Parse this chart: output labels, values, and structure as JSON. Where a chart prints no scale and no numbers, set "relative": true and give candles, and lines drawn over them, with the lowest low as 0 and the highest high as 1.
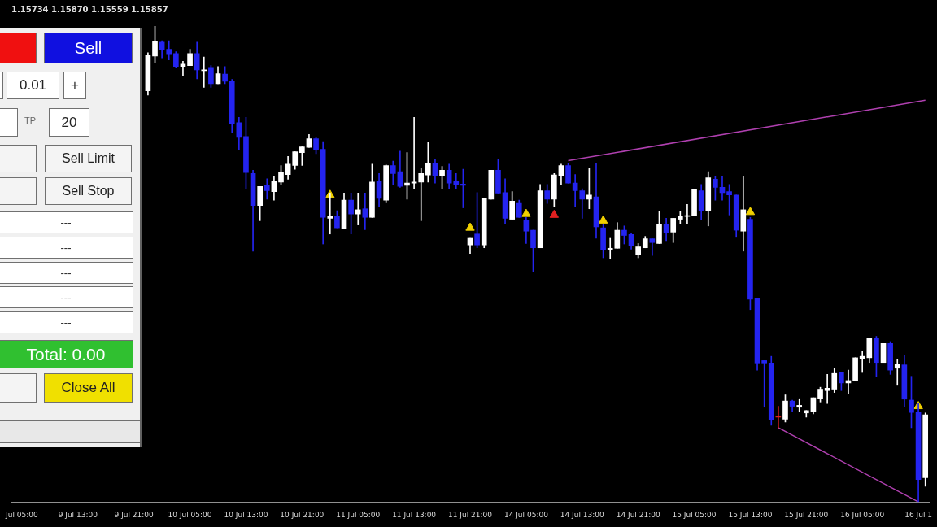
{
  "chart_data": {
    "type": "candlestick",
    "title": "1.15734 1.15870 1.15559 1.15857",
    "relative": true,
    "categories": [
      null,
      "Jul 05:00",
      null,
      null,
      null,
      null,
      null,
      null,
      null,
      "9 Jul 13:00",
      null,
      null,
      null,
      null,
      null,
      null,
      null,
      "9 Jul 21:00",
      null,
      null,
      null,
      null,
      null,
      null,
      null,
      "10 Jul 05:00",
      null,
      null,
      null,
      null,
      null,
      null,
      null,
      "10 Jul 13:00",
      null,
      null,
      null,
      null,
      null,
      null,
      null,
      "10 Jul 21:00",
      null,
      null,
      null,
      null,
      null,
      null,
      null,
      "11 Jul 05:00",
      null,
      null,
      null,
      null,
      null,
      null,
      null,
      "11 Jul 13:00",
      null,
      null,
      null,
      null,
      null,
      null,
      null,
      "11 Jul 21:00",
      null,
      null,
      null,
      null,
      null,
      null,
      null,
      "14 Jul 05:00",
      null,
      null,
      null,
      null,
      null,
      null,
      null,
      "14 Jul 13:00",
      null,
      null,
      null,
      null,
      null,
      null,
      null,
      "14 Jul 21:00",
      null,
      null,
      null,
      null,
      null,
      null,
      null,
      "15 Jul 05:00",
      null,
      null,
      null,
      null,
      null,
      null,
      null,
      "15 Jul 13:00",
      null,
      null,
      null,
      null,
      null,
      null,
      null,
      "15 Jul 21:00",
      null,
      null,
      null,
      null,
      null,
      null,
      null,
      "16 Jul 05:00",
      null,
      null,
      null,
      null,
      null,
      null,
      null,
      "16 Jul 1",
      null
    ],
    "ohlc": [
      null,
      null,
      null,
      null,
      null,
      null,
      null,
      null,
      null,
      null,
      null,
      null,
      null,
      null,
      null,
      null,
      null,
      null,
      null,
      [
        0.864,
        0.944,
        0.855,
        0.938
      ],
      [
        0.937,
        1,
        0.922,
        0.967
      ],
      [
        0.966,
        0.969,
        0.933,
        0.951
      ],
      [
        0.951,
        0.969,
        0.929,
        0.94
      ],
      [
        0.942,
        0.946,
        0.913,
        0.915
      ],
      [
        0.915,
        0.926,
        0.895,
        0.92
      ],
      [
        0.917,
        0.951,
        0.917,
        0.942
      ],
      [
        0.942,
        0.966,
        0.889,
        0.908
      ],
      [
        0.906,
        0.935,
        0.871,
        0.908
      ],
      [
        0.913,
        0.917,
        0.871,
        0.879
      ],
      [
        0.879,
        0.915,
        0.879,
        0.9
      ],
      [
        0.899,
        0.915,
        0.879,
        0.884
      ],
      [
        0.884,
        0.888,
        0.775,
        0.795
      ],
      [
        0.797,
        0.808,
        0.739,
        0.766
      ],
      [
        0.768,
        0.808,
        0.659,
        0.692
      ],
      [
        0.69,
        0.697,
        0.527,
        0.623
      ],
      [
        0.623,
        0.663,
        0.591,
        0.663
      ],
      [
        0.665,
        0.679,
        0.636,
        0.654
      ],
      [
        0.652,
        0.685,
        0.634,
        0.674
      ],
      [
        0.672,
        0.707,
        0.667,
        0.692
      ],
      [
        0.688,
        0.726,
        0.678,
        0.71
      ],
      [
        0.707,
        0.736,
        0.699,
        0.736
      ],
      [
        0.734,
        0.746,
        0.707,
        0.746
      ],
      [
        0.745,
        0.772,
        0.745,
        0.763
      ],
      [
        0.763,
        0.766,
        0.732,
        0.741
      ],
      [
        0.741,
        0.757,
        0.542,
        0.598
      ],
      [
        0.596,
        0.649,
        0.563,
        0.6
      ],
      [
        0.6,
        0.612,
        0.576,
        0.576
      ],
      [
        0.574,
        0.649,
        0.574,
        0.634
      ],
      [
        0.634,
        0.649,
        0.563,
        0.605
      ],
      [
        0.605,
        0.649,
        0.582,
        0.614
      ],
      [
        0.616,
        0.649,
        0.572,
        0.598
      ],
      [
        0.598,
        0.71,
        0.598,
        0.672
      ],
      [
        0.674,
        0.69,
        0.621,
        0.638
      ],
      [
        0.634,
        0.708,
        0.63,
        0.707
      ],
      [
        0.707,
        0.716,
        0.667,
        0.69
      ],
      [
        0.694,
        0.737,
        0.661,
        0.663
      ],
      [
        0.665,
        0.734,
        0.636,
        0.67
      ],
      [
        0.67,
        0.808,
        0.658,
        0.672
      ],
      [
        0.672,
        0.701,
        0.591,
        0.69
      ],
      [
        0.687,
        0.755,
        0.672,
        0.712
      ],
      [
        0.712,
        0.721,
        0.67,
        0.685
      ],
      [
        0.685,
        0.705,
        0.659,
        0.697
      ],
      [
        0.697,
        0.71,
        0.659,
        0.67
      ],
      [
        0.674,
        0.69,
        0.658,
        0.667
      ],
      [
        0.668,
        0.699,
        0.618,
        0.665
      ],
      [
        0.54,
        0.554,
        0.522,
        0.554
      ],
      [
        0.563,
        0.65,
        0.534,
        0.54
      ],
      [
        0.54,
        0.638,
        0.534,
        0.638
      ],
      [
        0.636,
        0.697,
        0.636,
        0.697
      ],
      [
        0.697,
        0.719,
        0.649,
        0.649
      ],
      [
        0.65,
        0.679,
        0.585,
        0.596
      ],
      [
        0.594,
        0.652,
        0.594,
        0.632
      ],
      [
        0.629,
        0.634,
        0.598,
        0.598
      ],
      [
        0.592,
        0.598,
        0.543,
        0.569
      ],
      [
        0.571,
        0.571,
        0.484,
        0.534
      ],
      [
        0.534,
        0.667,
        0.534,
        0.654
      ],
      [
        0.654,
        0.667,
        0.627,
        0.636
      ],
      [
        0.636,
        0.69,
        0.621,
        0.687
      ],
      [
        0.685,
        0.71,
        0.667,
        0.707
      ],
      [
        0.707,
        0.712,
        0.67,
        0.67
      ],
      [
        0.67,
        0.688,
        0.621,
        0.654
      ],
      [
        0.654,
        0.658,
        0.596,
        0.636
      ],
      [
        0.636,
        0.701,
        0.616,
        0.645
      ],
      [
        0.641,
        0.712,
        0.554,
        0.578
      ],
      [
        0.576,
        0.583,
        0.513,
        0.529
      ],
      [
        0.529,
        0.554,
        0.511,
        0.533
      ],
      [
        0.533,
        0.587,
        0.533,
        0.571
      ],
      [
        0.571,
        0.58,
        0.542,
        0.56
      ],
      [
        0.562,
        0.565,
        0.531,
        0.538
      ],
      [
        0.52,
        0.543,
        0.513,
        0.536
      ],
      [
        0.534,
        0.558,
        0.534,
        0.553
      ],
      [
        0.553,
        0.553,
        0.518,
        0.545
      ],
      [
        0.543,
        0.611,
        0.543,
        0.583
      ],
      [
        0.583,
        0.596,
        0.549,
        0.565
      ],
      [
        0.567,
        0.596,
        0.545,
        0.596
      ],
      [
        0.594,
        0.611,
        0.585,
        0.601
      ],
      [
        0.6,
        0.625,
        0.585,
        0.601
      ],
      [
        0.601,
        0.656,
        0.601,
        0.656
      ],
      [
        0.654,
        0.667,
        0.594,
        0.612
      ],
      [
        0.612,
        0.694,
        0.58,
        0.681
      ],
      [
        0.678,
        0.685,
        0.634,
        0.661
      ],
      [
        0.661,
        0.685,
        0.634,
        0.65
      ],
      [
        0.652,
        0.667,
        0.603,
        0.645
      ],
      [
        0.645,
        0.645,
        0.556,
        0.571
      ],
      [
        0.569,
        0.685,
        0.527,
        0.614
      ],
      [
        0.594,
        0.598,
        0.404,
        0.426
      ],
      [
        0.428,
        0.428,
        0.277,
        0.292
      ],
      [
        0.297,
        0.297,
        0.199,
        0.292
      ],
      [
        0.292,
        0.306,
        0.161,
        0.172
      ],
      [
        0.178,
        0.201,
        0.156,
        0.178
      ],
      [
        0.174,
        0.225,
        0.168,
        0.212
      ],
      [
        0.212,
        0.214,
        0.19,
        0.201
      ],
      [
        0.199,
        0.217,
        0.19,
        0.203
      ],
      [
        0.187,
        0.192,
        0.178,
        0.192
      ],
      [
        0.19,
        0.219,
        0.185,
        0.219
      ],
      [
        0.217,
        0.241,
        0.21,
        0.237
      ],
      [
        0.234,
        0.268,
        0.207,
        0.239
      ],
      [
        0.237,
        0.281,
        0.23,
        0.27
      ],
      [
        0.272,
        0.272,
        0.234,
        0.25
      ],
      [
        0.25,
        0.277,
        0.228,
        0.255
      ],
      [
        0.255,
        0.303,
        0.255,
        0.303
      ],
      [
        0.301,
        0.317,
        0.272,
        0.306
      ],
      [
        0.303,
        0.344,
        0.293,
        0.344
      ],
      [
        0.344,
        0.348,
        0.263,
        0.293
      ],
      [
        0.293,
        0.333,
        0.293,
        0.333
      ],
      [
        0.333,
        0.337,
        0.268,
        0.277
      ],
      [
        0.281,
        0.299,
        0.245,
        0.29
      ],
      [
        0.288,
        0.308,
        0.201,
        0.216
      ],
      [
        0.214,
        0.264,
        0.156,
        0.188
      ],
      [
        0.188,
        0.208,
        0,
        0.047
      ],
      [
        0.051,
        0.187,
        0.033,
        0.183
      ]
    ],
    "colors": [
      null,
      null,
      null,
      null,
      null,
      null,
      null,
      null,
      null,
      null,
      null,
      null,
      null,
      null,
      null,
      null,
      null,
      null,
      null,
      "#ffffff",
      "#ffffff",
      "#2424f0",
      "#2424f0",
      "#2424f0",
      "#ffffff",
      "#ffffff",
      "#2424f0",
      "#ffffff",
      "#2424f0",
      "#ffffff",
      "#2424f0",
      "#2424f0",
      "#2424f0",
      "#2424f0",
      "#2424f0",
      "#ffffff",
      "#2424f0",
      "#ffffff",
      "#ffffff",
      "#ffffff",
      "#ffffff",
      "#ffffff",
      "#ffffff",
      "#2424f0",
      "#2424f0",
      "#ffffff",
      "#2424f0",
      "#ffffff",
      "#2424f0",
      "#ffffff",
      "#2424f0",
      "#ffffff",
      "#2424f0",
      "#ffffff",
      "#2424f0",
      "#2424f0",
      "#ffffff",
      "#ffffff",
      "#ffffff",
      "#ffffff",
      "#2424f0",
      "#ffffff",
      "#2424f0",
      "#2424f0",
      "#2424f0",
      "#ffffff",
      "#2424f0",
      "#ffffff",
      "#ffffff",
      "#2424f0",
      "#2424f0",
      "#ffffff",
      "#2424f0",
      "#2424f0",
      "#2424f0",
      "#ffffff",
      "#2424f0",
      "#ffffff",
      "#ffffff",
      "#2424f0",
      "#2424f0",
      "#2424f0",
      "#ffffff",
      "#2424f0",
      "#2424f0",
      "#ffffff",
      "#ffffff",
      "#2424f0",
      "#2424f0",
      "#ffffff",
      "#ffffff",
      "#2424f0",
      "#ffffff",
      "#2424f0",
      "#ffffff",
      "#ffffff",
      "#ffffff",
      "#ffffff",
      "#2424f0",
      "#ffffff",
      "#2424f0",
      "#2424f0",
      "#2424f0",
      "#2424f0",
      "#ffffff",
      "#2424f0",
      "#2424f0",
      "#2424f0",
      "#2424f0",
      "#e02020",
      "#ffffff",
      "#2424f0",
      "#ffffff",
      "#ffffff",
      "#ffffff",
      "#ffffff",
      "#ffffff",
      "#ffffff",
      "#2424f0",
      "#ffffff",
      "#ffffff",
      "#ffffff",
      "#ffffff",
      "#2424f0",
      "#ffffff",
      "#2424f0",
      "#ffffff",
      "#2424f0",
      "#2424f0",
      "#2424f0",
      "#ffffff"
    ],
    "series": [
      {
        "type": "line",
        "color": "#b040b0",
        "line_style": "solid",
        "marker": "none",
        "values": [
          null,
          null,
          null,
          null,
          null,
          null,
          null,
          null,
          null,
          null,
          null,
          null,
          null,
          null,
          null,
          null,
          null,
          null,
          null,
          null,
          null,
          null,
          null,
          null,
          null,
          null,
          null,
          null,
          null,
          null,
          null,
          null,
          null,
          null,
          null,
          null,
          null,
          null,
          null,
          null,
          null,
          null,
          null,
          null,
          null,
          null,
          null,
          null,
          null,
          null,
          null,
          null,
          null,
          null,
          null,
          null,
          null,
          null,
          null,
          null,
          null,
          null,
          null,
          null,
          null,
          null,
          null,
          null,
          null,
          null,
          null,
          null,
          null,
          null,
          null,
          null,
          null,
          null,
          null,
          0.717,
          null,
          null,
          null,
          null,
          null,
          null,
          null,
          null,
          null,
          null,
          null,
          null,
          null,
          null,
          null,
          null,
          null,
          null,
          null,
          null,
          null,
          null,
          null,
          null,
          null,
          null,
          null,
          null,
          null,
          null,
          null,
          null,
          null,
          null,
          null,
          null,
          null,
          null,
          null,
          null,
          null,
          null,
          null,
          null,
          null,
          null,
          null,
          null,
          null,
          null,
          0.844
        ]
      },
      {
        "type": "line",
        "color": "#b040b0",
        "line_style": "solid",
        "marker": "none",
        "values": [
          null,
          null,
          null,
          null,
          null,
          null,
          null,
          null,
          null,
          null,
          null,
          null,
          null,
          null,
          null,
          null,
          null,
          null,
          null,
          null,
          null,
          null,
          null,
          null,
          null,
          null,
          null,
          null,
          null,
          null,
          null,
          null,
          null,
          null,
          null,
          null,
          null,
          null,
          null,
          null,
          null,
          null,
          null,
          null,
          null,
          null,
          null,
          null,
          null,
          null,
          null,
          null,
          null,
          null,
          null,
          null,
          null,
          null,
          null,
          null,
          null,
          null,
          null,
          null,
          null,
          null,
          null,
          null,
          null,
          null,
          null,
          null,
          null,
          null,
          null,
          null,
          null,
          null,
          null,
          null,
          null,
          null,
          null,
          null,
          null,
          null,
          null,
          null,
          null,
          null,
          null,
          null,
          null,
          null,
          null,
          null,
          null,
          null,
          null,
          null,
          null,
          null,
          null,
          null,
          null,
          null,
          null,
          null,
          null,
          0.156,
          null,
          null,
          null,
          null,
          null,
          null,
          null,
          null,
          null,
          null,
          null,
          null,
          null,
          null,
          null,
          null,
          null,
          null,
          null,
          0,
          null
        ]
      },
      {
        "type": "scatter",
        "color": "#f0d000",
        "marker": "triangle",
        "values": [
          null,
          null,
          null,
          null,
          null,
          null,
          null,
          null,
          null,
          null,
          null,
          null,
          null,
          null,
          null,
          null,
          null,
          null,
          null,
          null,
          null,
          null,
          null,
          null,
          null,
          null,
          null,
          null,
          null,
          null,
          null,
          null,
          null,
          null,
          null,
          null,
          null,
          null,
          null,
          null,
          null,
          null,
          null,
          null,
          null,
          0.645,
          null,
          null,
          null,
          null,
          null,
          null,
          null,
          null,
          null,
          null,
          null,
          null,
          null,
          null,
          null,
          null,
          null,
          null,
          null,
          0.576,
          null,
          null,
          null,
          null,
          null,
          null,
          null,
          0.605,
          null,
          null,
          null,
          null,
          null,
          null,
          null,
          null,
          null,
          null,
          0.591,
          null,
          null,
          null,
          null,
          null,
          null,
          null,
          null,
          null,
          null,
          null,
          null,
          null,
          null,
          null,
          null,
          null,
          null,
          null,
          null,
          0.609,
          null,
          null,
          null,
          null,
          null,
          null,
          null,
          null,
          null,
          null,
          null,
          null,
          null,
          null,
          null,
          null,
          null,
          null,
          null,
          null,
          null,
          null,
          null,
          0.201,
          null
        ]
      },
      {
        "type": "scatter",
        "color": "#e02020",
        "marker": "triangle",
        "values": [
          null,
          null,
          null,
          null,
          null,
          null,
          null,
          null,
          null,
          null,
          null,
          null,
          null,
          null,
          null,
          null,
          null,
          null,
          null,
          null,
          null,
          null,
          null,
          null,
          null,
          null,
          null,
          null,
          null,
          null,
          null,
          null,
          null,
          null,
          null,
          null,
          null,
          null,
          null,
          null,
          null,
          null,
          null,
          null,
          null,
          null,
          null,
          null,
          null,
          null,
          null,
          null,
          null,
          null,
          null,
          null,
          null,
          null,
          null,
          null,
          null,
          null,
          null,
          null,
          null,
          null,
          null,
          null,
          null,
          null,
          null,
          null,
          null,
          null,
          null,
          null,
          null,
          0.603,
          null,
          null,
          null,
          null,
          null,
          null,
          null,
          null,
          null,
          null,
          null,
          null,
          null,
          null,
          null,
          null,
          null,
          null,
          null,
          null,
          null,
          null,
          null,
          null,
          null,
          null,
          null,
          null,
          null,
          null,
          null,
          null,
          null,
          null,
          null,
          null,
          null,
          null,
          null,
          null,
          null,
          null,
          null,
          null,
          null,
          null,
          null,
          null,
          null,
          null,
          null,
          null,
          null
        ]
      }
    ],
    "annotations": [
      "Sell",
      "0.01",
      "+",
      "TP",
      "20",
      "Sell Limit",
      "Sell Stop",
      "---",
      "---",
      "---",
      "---",
      "---",
      "Total: 0.00",
      "Close All"
    ]
  }
}
